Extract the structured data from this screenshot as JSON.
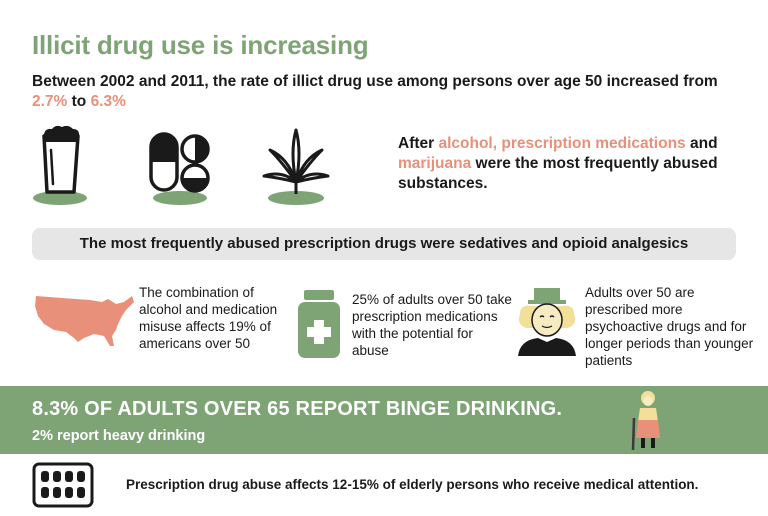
{
  "colors": {
    "green": "#7ea476",
    "accent": "#e8907a",
    "dark": "#1a1a1a"
  },
  "title": "Illicit drug use is increasing",
  "intro": {
    "text_before": "Between 2002 and 2011, the rate of illict drug use among persons over age 50 increased from ",
    "from_value": "2.7%",
    "middle": " to ",
    "to_value": "6.3%"
  },
  "icons": [
    "beer-glass-icon",
    "pills-icon",
    "marijuana-leaf-icon",
    "usa-map-icon",
    "pill-bottle-icon",
    "person-hat-icon",
    "elderly-woman-icon",
    "blister-pack-icon"
  ],
  "after": {
    "prefix": "After ",
    "highlight1": "alcohol, prescription medications",
    "mid": " and ",
    "highlight2": "marijuana",
    "suffix": " were the most frequently abused substances."
  },
  "banner": "The most frequently abused prescription drugs were sedatives and opioid analgesics",
  "stats": [
    {
      "text": "The combination of alcohol and medication misuse affects 19% of americans over 50"
    },
    {
      "text": "25% of adults over 50 take prescription medications with the potential for abuse"
    },
    {
      "text": "Adults over 50 are prescribed more psychoactive drugs and for longer periods than younger patients"
    }
  ],
  "binge": {
    "headline": "8.3% OF ADULTS OVER 65 REPORT BINGE DRINKING.",
    "sub": "2% report heavy drinking"
  },
  "bottom": "Prescription drug abuse affects 12-15% of elderly persons who receive medical attention."
}
